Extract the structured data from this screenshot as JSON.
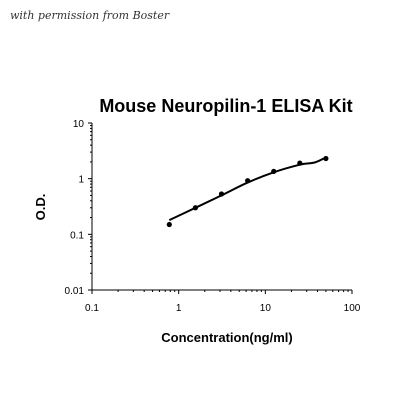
{
  "watermark": "with permission from Boster",
  "chart_data": {
    "type": "scatter",
    "title": "Mouse Neuropilin-1 ELISA Kit",
    "xlabel": "Concentration(ng/ml)",
    "ylabel": "O.D.",
    "xscale": "log",
    "yscale": "log",
    "xlim": [
      0.1,
      100
    ],
    "ylim": [
      0.01,
      10
    ],
    "xticks": [
      "0.1",
      "1",
      "10",
      "100"
    ],
    "yticks": [
      "0.01",
      "0.1",
      "1",
      "10"
    ],
    "grid": false,
    "legend": "none",
    "series": [
      {
        "points": [
          {
            "x": 0.78,
            "y": 0.15
          },
          {
            "x": 1.56,
            "y": 0.3
          },
          {
            "x": 3.12,
            "y": 0.53
          },
          {
            "x": 6.25,
            "y": 0.92
          },
          {
            "x": 12.5,
            "y": 1.35
          },
          {
            "x": 25,
            "y": 1.9
          },
          {
            "x": 50,
            "y": 2.3
          }
        ],
        "fit_curve": [
          {
            "x": 0.78,
            "y": 0.18
          },
          {
            "x": 1.56,
            "y": 0.3
          },
          {
            "x": 3.12,
            "y": 0.5
          },
          {
            "x": 6.25,
            "y": 0.85
          },
          {
            "x": 12.5,
            "y": 1.3
          },
          {
            "x": 25,
            "y": 1.78
          },
          {
            "x": 37,
            "y": 1.95
          },
          {
            "x": 50,
            "y": 2.4
          }
        ]
      }
    ]
  }
}
